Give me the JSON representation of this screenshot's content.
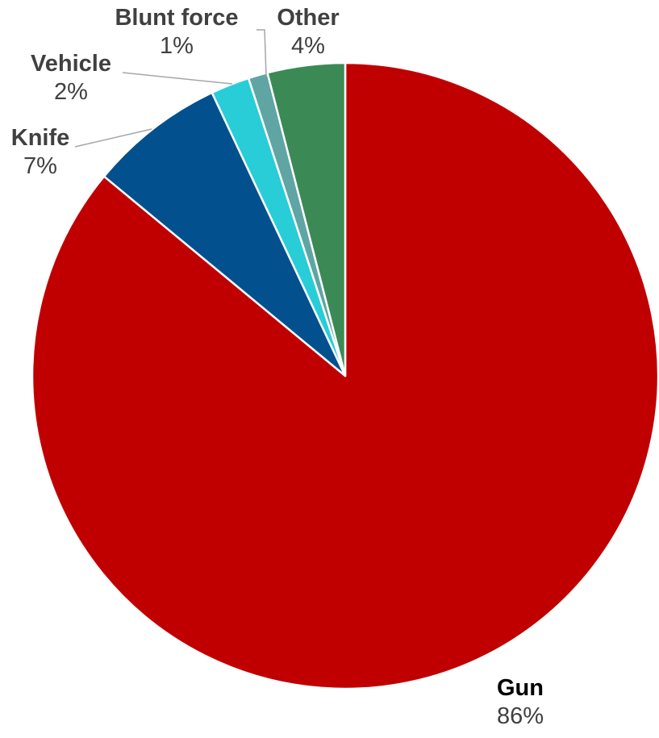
{
  "chart_data": {
    "type": "pie",
    "categories": [
      "Gun",
      "Knife",
      "Vehicle",
      "Blunt force",
      "Other"
    ],
    "values": [
      86,
      7,
      2,
      1,
      4
    ],
    "labels": [
      "86%",
      "7%",
      "2%",
      "1%",
      "4%"
    ],
    "colors": [
      "#c00000",
      "#03508e",
      "#28cdd8",
      "#5ea5a3",
      "#3b8a56"
    ],
    "start_angle_deg": 0,
    "direction": "clockwise",
    "legend": "none"
  }
}
